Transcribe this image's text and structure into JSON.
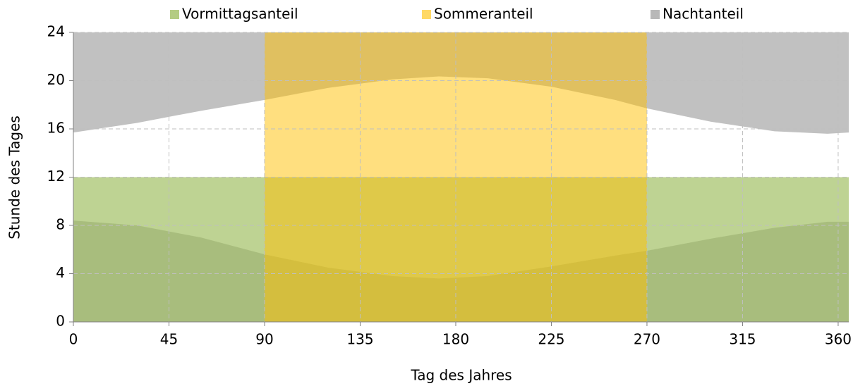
{
  "chart_data": {
    "type": "area",
    "xlabel": "Tag des Jahres",
    "ylabel": "Stunde des Tages",
    "xlim": [
      0,
      365
    ],
    "ylim": [
      0,
      24
    ],
    "xticks": [
      0,
      45,
      90,
      135,
      180,
      225,
      270,
      315,
      360
    ],
    "yticks": [
      0,
      4,
      8,
      12,
      16,
      20,
      24
    ],
    "grid": true,
    "legend": "top",
    "series": [
      {
        "name": "Vormittagsanteil",
        "color": "#9bbb59",
        "x": [
          0,
          365
        ],
        "values": [
          12,
          12
        ]
      },
      {
        "name": "Sommeranteil",
        "color": "#ffc000",
        "x": [
          90,
          270
        ],
        "values": [
          24,
          24
        ]
      },
      {
        "name": "Nachtanteil",
        "color": "#a6a6a6",
        "x": [
          0,
          30,
          60,
          90,
          120,
          150,
          172,
          195,
          225,
          255,
          270,
          300,
          330,
          355,
          365
        ],
        "sunrise": [
          8.4,
          8.0,
          7.0,
          5.6,
          4.5,
          3.8,
          3.6,
          3.8,
          4.6,
          5.5,
          5.9,
          6.9,
          7.8,
          8.3,
          8.3
        ],
        "sunset": [
          15.7,
          16.5,
          17.5,
          18.4,
          19.4,
          20.1,
          20.35,
          20.2,
          19.5,
          18.4,
          17.7,
          16.6,
          15.8,
          15.6,
          15.7
        ]
      }
    ]
  }
}
